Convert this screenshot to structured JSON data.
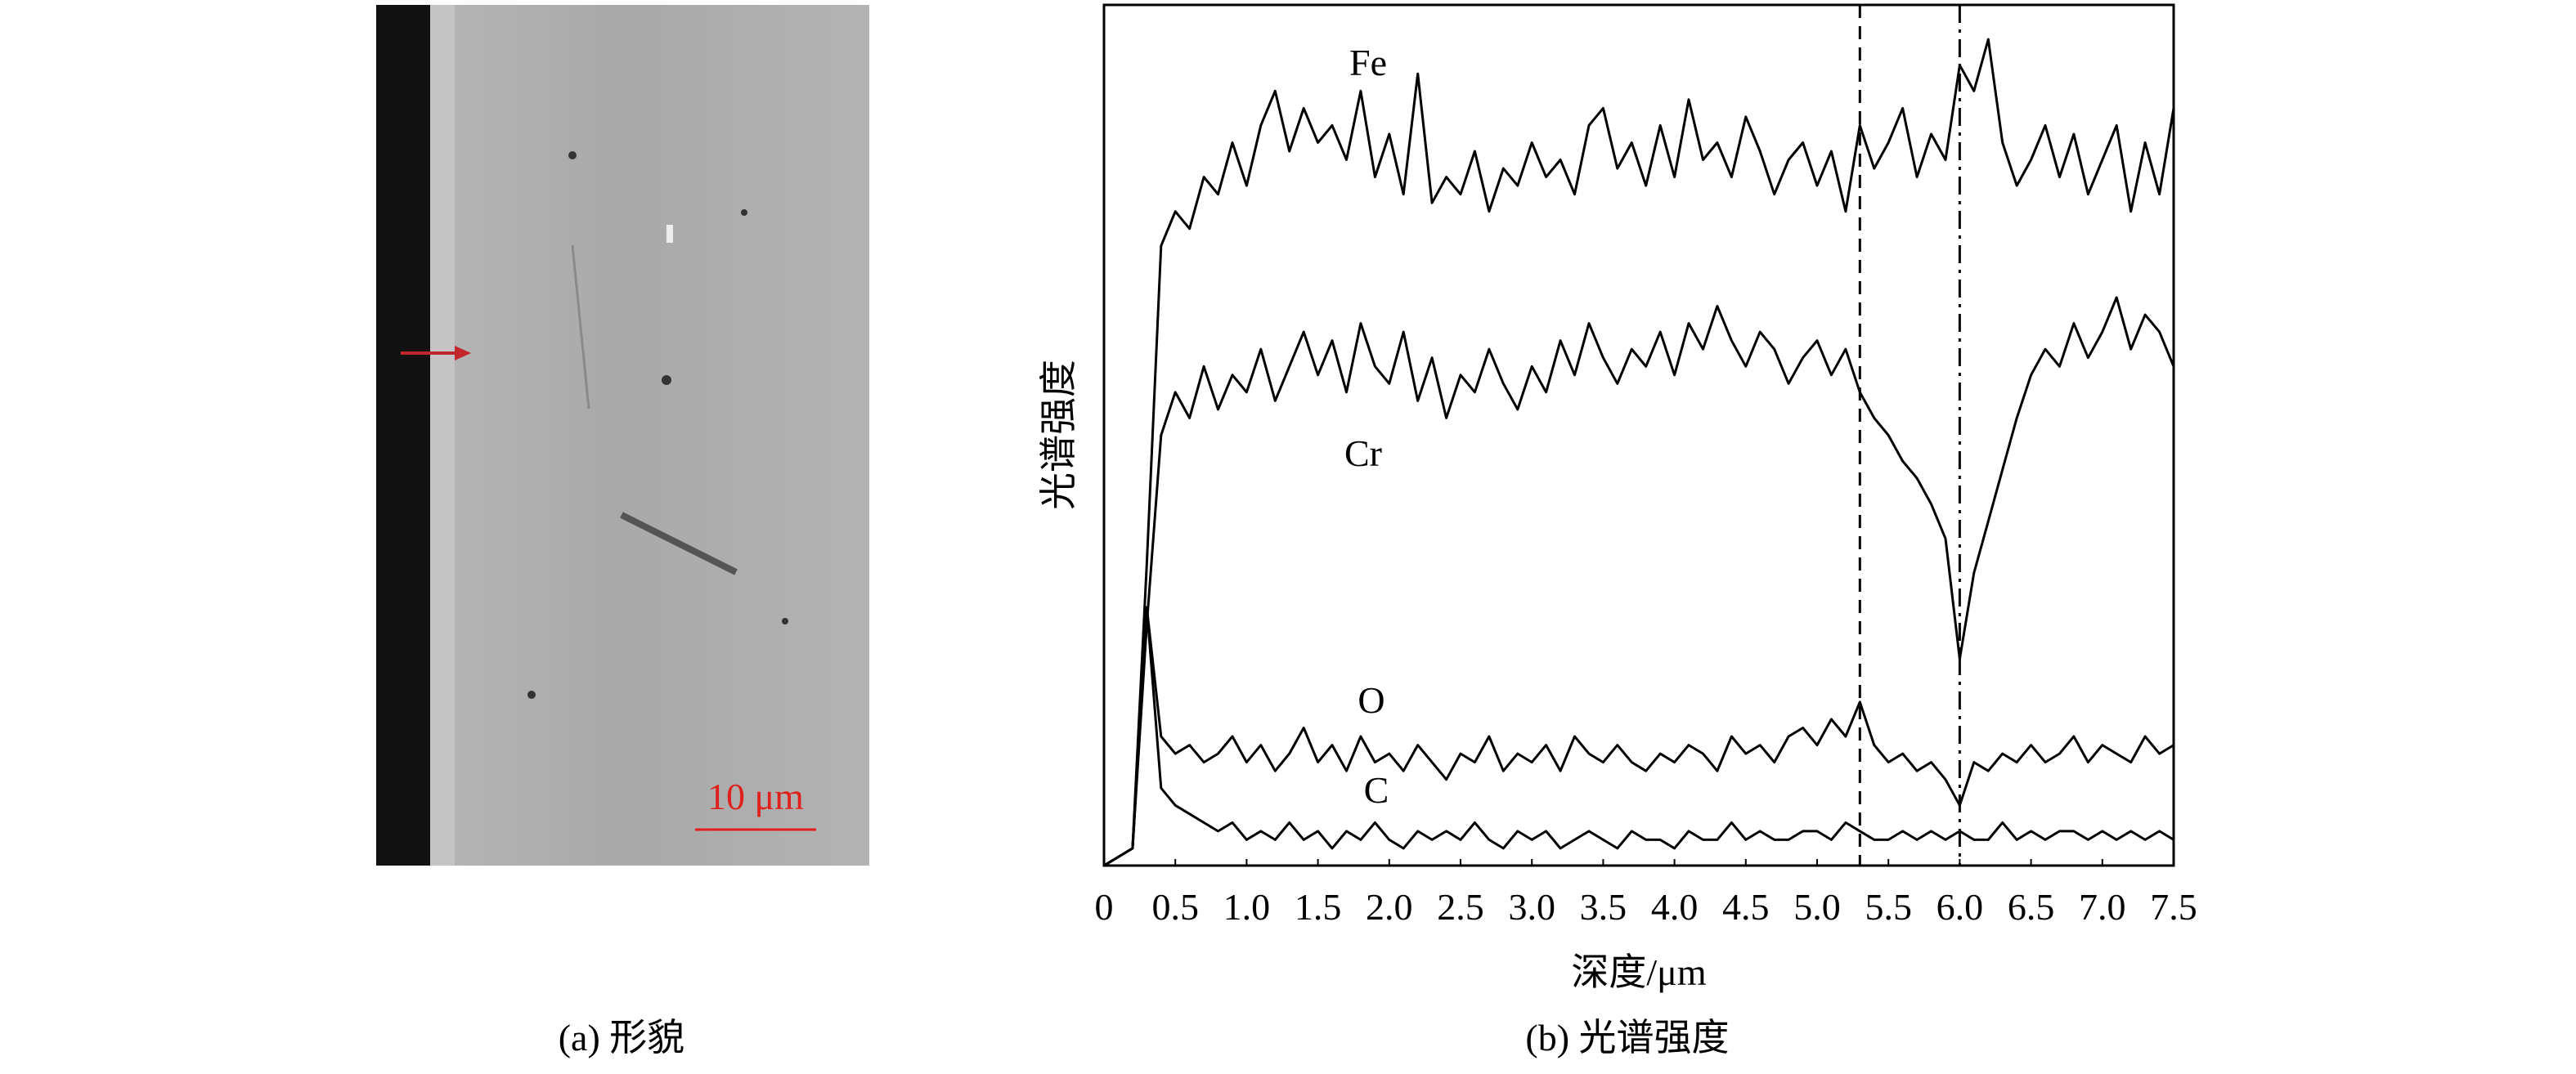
{
  "panel_a": {
    "scale_bar": "10 μm",
    "caption": "(a) 形貌"
  },
  "chart_data": {
    "type": "line",
    "caption": "(b) 光谱强度",
    "x_label": "深度/μm",
    "y_label": "光谱强度",
    "x": [
      0,
      0.1,
      0.2,
      0.3,
      0.4,
      0.5,
      0.6,
      0.7,
      0.8,
      0.9,
      1.0,
      1.1,
      1.2,
      1.3,
      1.4,
      1.5,
      1.6,
      1.7,
      1.8,
      1.9,
      2.0,
      2.1,
      2.2,
      2.3,
      2.4,
      2.5,
      2.6,
      2.7,
      2.8,
      2.9,
      3.0,
      3.1,
      3.2,
      3.3,
      3.4,
      3.5,
      3.6,
      3.7,
      3.8,
      3.9,
      4.0,
      4.1,
      4.2,
      4.3,
      4.4,
      4.5,
      4.6,
      4.7,
      4.8,
      4.9,
      5.0,
      5.1,
      5.2,
      5.3,
      5.4,
      5.5,
      5.6,
      5.7,
      5.8,
      5.9,
      6.0,
      6.1,
      6.2,
      6.3,
      6.4,
      6.5,
      6.6,
      6.7,
      6.8,
      6.9,
      7.0,
      7.1,
      7.2,
      7.3,
      7.4,
      7.5
    ],
    "series": [
      {
        "name": "Fe",
        "color": "#000000",
        "values": [
          0,
          1,
          2,
          35,
          72,
          76,
          74,
          80,
          78,
          84,
          79,
          86,
          90,
          83,
          88,
          84,
          86,
          82,
          90,
          80,
          85,
          78,
          92,
          77,
          80,
          78,
          83,
          76,
          81,
          79,
          84,
          80,
          82,
          78,
          86,
          88,
          81,
          84,
          79,
          86,
          80,
          89,
          82,
          84,
          80,
          87,
          83,
          78,
          82,
          84,
          79,
          83,
          76,
          86,
          81,
          84,
          88,
          80,
          85,
          82,
          93,
          90,
          96,
          84,
          79,
          82,
          86,
          80,
          85,
          78,
          82,
          86,
          76,
          84,
          78,
          88
        ]
      },
      {
        "name": "Cr",
        "color": "#000000",
        "values": [
          0,
          1,
          2,
          28,
          50,
          55,
          52,
          58,
          53,
          57,
          55,
          60,
          54,
          58,
          62,
          57,
          61,
          55,
          63,
          58,
          56,
          62,
          54,
          59,
          52,
          57,
          55,
          60,
          56,
          53,
          58,
          55,
          61,
          57,
          63,
          59,
          56,
          60,
          58,
          62,
          57,
          63,
          60,
          65,
          61,
          58,
          62,
          60,
          56,
          59,
          61,
          57,
          60,
          55,
          52,
          50,
          47,
          45,
          42,
          38,
          24,
          34,
          40,
          46,
          52,
          57,
          60,
          58,
          63,
          59,
          62,
          66,
          60,
          64,
          62,
          58
        ]
      },
      {
        "name": "O",
        "color": "#000000",
        "values": [
          0,
          1,
          2,
          30,
          15,
          13,
          14,
          12,
          13,
          15,
          12,
          14,
          11,
          13,
          16,
          12,
          14,
          11,
          15,
          12,
          13,
          11,
          14,
          12,
          10,
          13,
          12,
          15,
          11,
          13,
          12,
          14,
          11,
          15,
          13,
          12,
          14,
          12,
          11,
          13,
          12,
          14,
          13,
          11,
          15,
          13,
          14,
          12,
          15,
          16,
          14,
          17,
          15,
          19,
          14,
          12,
          13,
          11,
          12,
          10,
          7,
          12,
          11,
          13,
          12,
          14,
          12,
          13,
          15,
          12,
          14,
          13,
          12,
          15,
          13,
          14
        ]
      },
      {
        "name": "C",
        "color": "#000000",
        "values": [
          0,
          1,
          2,
          30,
          9,
          7,
          6,
          5,
          4,
          5,
          3,
          4,
          3,
          5,
          3,
          4,
          2,
          4,
          3,
          5,
          3,
          2,
          4,
          3,
          4,
          3,
          5,
          3,
          2,
          4,
          3,
          4,
          2,
          3,
          4,
          3,
          2,
          4,
          3,
          3,
          2,
          4,
          3,
          3,
          5,
          3,
          4,
          3,
          3,
          4,
          4,
          3,
          5,
          4,
          3,
          3,
          4,
          3,
          4,
          3,
          4,
          3,
          3,
          5,
          3,
          4,
          3,
          4,
          4,
          3,
          4,
          3,
          4,
          3,
          4,
          3
        ]
      }
    ],
    "xlim": [
      0,
      7.5
    ],
    "xticks": [
      0,
      0.5,
      {
        "value": 1,
        "label": "1.0"
      },
      1.5,
      {
        "value": 2,
        "label": "2.0"
      },
      2.5,
      {
        "value": 3,
        "label": "3.0"
      },
      3.5,
      {
        "value": 4,
        "label": "4.0"
      },
      4.5,
      {
        "value": 5,
        "label": "5.0"
      },
      5.5,
      {
        "value": 6,
        "label": "6.0"
      },
      6.5,
      {
        "value": 7,
        "label": "7.0"
      },
      7.5
    ],
    "ylim": [
      0,
      100
    ],
    "vlines": [
      {
        "x": 5.3,
        "style": "dashed"
      },
      {
        "x": 6.0,
        "style": "dashdot"
      }
    ]
  }
}
